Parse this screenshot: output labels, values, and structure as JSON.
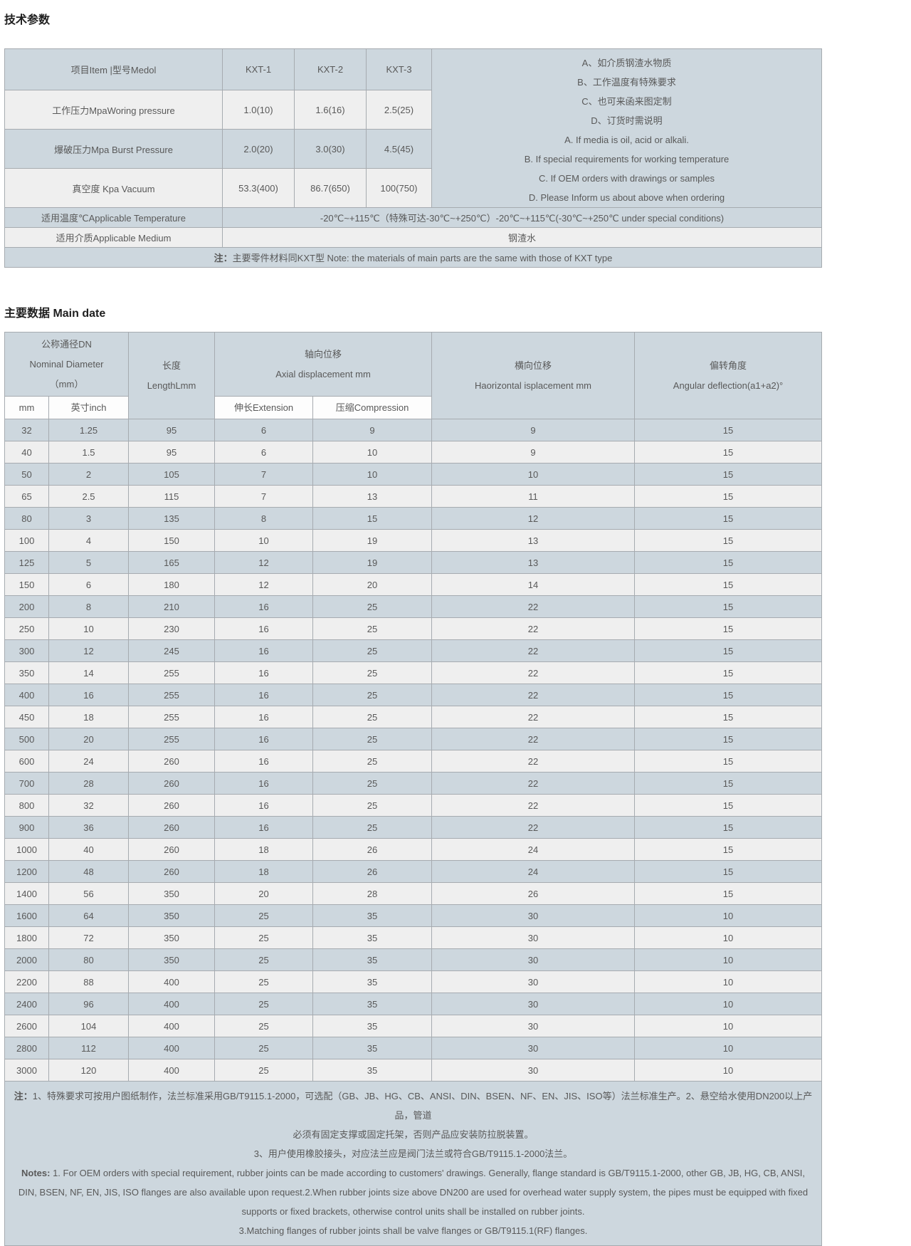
{
  "sections": {
    "tech_title": "技术参数",
    "main_title": "主要数据 Main date"
  },
  "tech_table": {
    "header_item": "项目Item |型号Medol",
    "models": [
      "KXT-1",
      "KXT-2",
      "KXT-3"
    ],
    "rows": [
      {
        "label": "工作压力MpaWoring pressure",
        "values": [
          "1.0(10)",
          "1.6(16)",
          "2.5(25)"
        ]
      },
      {
        "label": "爆破压力Mpa Burst Pressure",
        "values": [
          "2.0(20)",
          "3.0(30)",
          "4.5(45)"
        ]
      },
      {
        "label": "真空度 Kpa Vacuum",
        "values": [
          "53.3(400)",
          "86.7(650)",
          "100(750)"
        ]
      }
    ],
    "side_notes": [
      "A、如介质钢渣水物质",
      "B、工作温度有特殊要求",
      "C、也可来函来图定制",
      "D、订货时需说明",
      "A. If media is oil, acid or alkali.",
      "B. If special requirements for working temperature",
      "C. If OEM orders with drawings or samples",
      "D. Please Inform us about above when ordering"
    ],
    "temperature_label": "适用温度℃Applicable Temperature",
    "temperature_value": "-20℃~+115℃（特殊可达-30℃~+250℃）-20℃~+115℃(-30℃~+250℃ under special conditions)",
    "medium_label": "适用介质Applicable Medium",
    "medium_value": "钢渣水",
    "note_prefix": "注：",
    "note_text": "主要零件材料同KXT型 Note: the materials of main parts are the same with those of KXT type"
  },
  "main_table": {
    "header": {
      "dn_line1": "公称通径DN",
      "dn_line2": "Nominal Diameter",
      "dn_line3": "（mm）",
      "length_line1": "长度",
      "length_line2": "LengthLmm",
      "axial_line1": "轴向位移",
      "axial_line2": "Axial displacement mm",
      "horizontal_line1": "横向位移",
      "horizontal_line2": "Haorizontal isplacement mm",
      "angular_line1": "偏转角度",
      "angular_line2": "Angular deflection(a1+a2)°",
      "sub_mm": "mm",
      "sub_inch": "英寸inch",
      "sub_extension": "伸长Extension",
      "sub_compression": "压缩Compression"
    },
    "rows": [
      [
        "32",
        "1.25",
        "95",
        "6",
        "9",
        "9",
        "15"
      ],
      [
        "40",
        "1.5",
        "95",
        "6",
        "10",
        "9",
        "15"
      ],
      [
        "50",
        "2",
        "105",
        "7",
        "10",
        "10",
        "15"
      ],
      [
        "65",
        "2.5",
        "115",
        "7",
        "13",
        "11",
        "15"
      ],
      [
        "80",
        "3",
        "135",
        "8",
        "15",
        "12",
        "15"
      ],
      [
        "100",
        "4",
        "150",
        "10",
        "19",
        "13",
        "15"
      ],
      [
        "125",
        "5",
        "165",
        "12",
        "19",
        "13",
        "15"
      ],
      [
        "150",
        "6",
        "180",
        "12",
        "20",
        "14",
        "15"
      ],
      [
        "200",
        "8",
        "210",
        "16",
        "25",
        "22",
        "15"
      ],
      [
        "250",
        "10",
        "230",
        "16",
        "25",
        "22",
        "15"
      ],
      [
        "300",
        "12",
        "245",
        "16",
        "25",
        "22",
        "15"
      ],
      [
        "350",
        "14",
        "255",
        "16",
        "25",
        "22",
        "15"
      ],
      [
        "400",
        "16",
        "255",
        "16",
        "25",
        "22",
        "15"
      ],
      [
        "450",
        "18",
        "255",
        "16",
        "25",
        "22",
        "15"
      ],
      [
        "500",
        "20",
        "255",
        "16",
        "25",
        "22",
        "15"
      ],
      [
        "600",
        "24",
        "260",
        "16",
        "25",
        "22",
        "15"
      ],
      [
        "700",
        "28",
        "260",
        "16",
        "25",
        "22",
        "15"
      ],
      [
        "800",
        "32",
        "260",
        "16",
        "25",
        "22",
        "15"
      ],
      [
        "900",
        "36",
        "260",
        "16",
        "25",
        "22",
        "15"
      ],
      [
        "1000",
        "40",
        "260",
        "18",
        "26",
        "24",
        "15"
      ],
      [
        "1200",
        "48",
        "260",
        "18",
        "26",
        "24",
        "15"
      ],
      [
        "1400",
        "56",
        "350",
        "20",
        "28",
        "26",
        "15"
      ],
      [
        "1600",
        "64",
        "350",
        "25",
        "35",
        "30",
        "10"
      ],
      [
        "1800",
        "72",
        "350",
        "25",
        "35",
        "30",
        "10"
      ],
      [
        "2000",
        "80",
        "350",
        "25",
        "35",
        "30",
        "10"
      ],
      [
        "2200",
        "88",
        "400",
        "25",
        "35",
        "30",
        "10"
      ],
      [
        "2400",
        "96",
        "400",
        "25",
        "35",
        "30",
        "10"
      ],
      [
        "2600",
        "104",
        "400",
        "25",
        "35",
        "30",
        "10"
      ],
      [
        "2800",
        "112",
        "400",
        "25",
        "35",
        "30",
        "10"
      ],
      [
        "3000",
        "120",
        "400",
        "25",
        "35",
        "30",
        "10"
      ]
    ]
  },
  "footnotes": [
    {
      "bold": "注：",
      "text": "1、特殊要求可按用户图纸制作，法兰标准采用GB/T9115.1-2000，可选配（GB、JB、HG、CB、ANSI、DIN、BSEN、NF、EN、JIS、ISO等）法兰标准生产。2、悬空给水使用DN200以上产品，管道"
    },
    {
      "text": "必须有固定支撑或固定托架，否则产品应安装防拉脱装置。"
    },
    {
      "text": "3、用户使用橡胶接头，对应法兰应是阀门法兰或符合GB/T9115.1-2000法兰。"
    },
    {
      "bold": "Notes:",
      "text": " 1. For OEM orders with special requirement, rubber joints can be made according to customers' drawings. Generally, flange standard is GB/T9115.1-2000, other GB, JB, HG, CB, ANSI,"
    },
    {
      "text": "DIN, BSEN, NF, EN, JIS, ISO flanges are also available upon request.2.When rubber joints size above DN200 are used for overhead water supply system, the pipes must be equipped with fixed"
    },
    {
      "text": "supports or fixed brackets, otherwise control units shall be installed on rubber joints."
    },
    {
      "text": "3.Matching flanges of rubber joints shall be valve flanges or GB/T9115.1(RF) flanges."
    }
  ],
  "colors": {
    "header_bg": "#cdd7de",
    "row_light": "#efefef",
    "row_alt": "#cdd7de",
    "subheader_bg": "#fdfdfd",
    "border": "#a6abb0",
    "text": "#595959"
  }
}
